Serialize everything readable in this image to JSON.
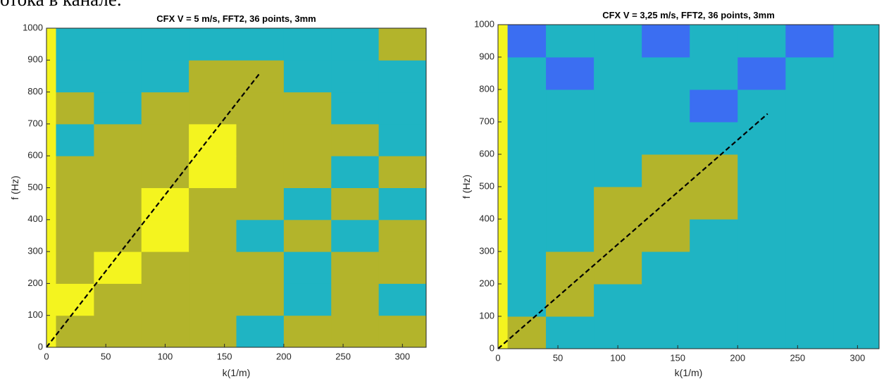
{
  "page_text": "отока в канале.",
  "chart_data": [
    {
      "type": "heatmap",
      "title": "CFX V = 5 m/s, FFT2, 36 points, 3mm",
      "xlabel": "k(1/m)",
      "ylabel": "f (Hz)",
      "xlim": [
        0,
        320
      ],
      "ylim": [
        0,
        1000
      ],
      "xticks": [
        0,
        50,
        100,
        150,
        200,
        250,
        300
      ],
      "yticks": [
        0,
        100,
        200,
        300,
        400,
        500,
        600,
        700,
        800,
        900,
        1000
      ],
      "colors": [
        "#3b6ef2",
        "#1fb4c3",
        "#b3b42b",
        "#f4f41f"
      ],
      "x_edges": [
        0,
        8,
        40,
        80,
        120,
        160,
        200,
        240,
        280,
        320
      ],
      "y_edges": [
        0,
        100,
        200,
        300,
        400,
        500,
        600,
        700,
        800,
        900,
        1000
      ],
      "z": [
        [
          3,
          2,
          2,
          2,
          2,
          1,
          2,
          2,
          2
        ],
        [
          3,
          3,
          2,
          2,
          2,
          2,
          1,
          2,
          1
        ],
        [
          3,
          2,
          3,
          2,
          2,
          2,
          1,
          2,
          2
        ],
        [
          3,
          2,
          2,
          3,
          2,
          1,
          2,
          1,
          2
        ],
        [
          3,
          2,
          2,
          3,
          2,
          2,
          1,
          2,
          1
        ],
        [
          3,
          2,
          2,
          2,
          3,
          2,
          2,
          1,
          2
        ],
        [
          3,
          1,
          2,
          2,
          3,
          2,
          2,
          2,
          1
        ],
        [
          3,
          2,
          1,
          2,
          2,
          2,
          2,
          1,
          1
        ],
        [
          3,
          1,
          1,
          1,
          2,
          2,
          1,
          1,
          1
        ],
        [
          3,
          1,
          1,
          1,
          1,
          1,
          1,
          1,
          2
        ]
      ],
      "line": {
        "x": [
          0,
          180
        ],
        "y": [
          0,
          860
        ],
        "color": "#000000",
        "style": "dashed"
      }
    },
    {
      "type": "heatmap",
      "title": "CFX V = 3,25 m/s, FFT2, 36 points, 3mm",
      "xlabel": "k(1/m)",
      "ylabel": "f (Hz)",
      "xlim": [
        0,
        318
      ],
      "ylim": [
        0,
        1000
      ],
      "xticks": [
        0,
        50,
        100,
        150,
        200,
        250,
        300
      ],
      "yticks": [
        0,
        100,
        200,
        300,
        400,
        500,
        600,
        700,
        800,
        900,
        1000
      ],
      "colors": [
        "#3b6ef2",
        "#1fb4c3",
        "#b3b42b",
        "#f4f41f"
      ],
      "x_edges": [
        0,
        8,
        40,
        80,
        120,
        160,
        200,
        240,
        280,
        318
      ],
      "y_edges": [
        0,
        100,
        200,
        300,
        400,
        500,
        600,
        700,
        800,
        900,
        1000
      ],
      "z": [
        [
          3,
          2,
          1,
          1,
          1,
          1,
          1,
          1,
          1
        ],
        [
          3,
          1,
          2,
          1,
          1,
          1,
          1,
          1,
          1
        ],
        [
          3,
          1,
          2,
          2,
          1,
          1,
          1,
          1,
          1
        ],
        [
          3,
          1,
          1,
          2,
          2,
          1,
          1,
          1,
          1
        ],
        [
          3,
          1,
          1,
          2,
          2,
          2,
          1,
          1,
          1
        ],
        [
          3,
          1,
          1,
          1,
          2,
          2,
          1,
          1,
          1
        ],
        [
          3,
          1,
          1,
          1,
          1,
          1,
          1,
          1,
          1
        ],
        [
          3,
          1,
          1,
          1,
          1,
          0,
          1,
          1,
          1
        ],
        [
          3,
          1,
          0,
          1,
          1,
          1,
          0,
          1,
          1
        ],
        [
          3,
          0,
          1,
          1,
          0,
          1,
          1,
          0,
          1
        ]
      ],
      "line": {
        "x": [
          0,
          225
        ],
        "y": [
          0,
          725
        ],
        "color": "#000000",
        "style": "dashed"
      }
    }
  ]
}
